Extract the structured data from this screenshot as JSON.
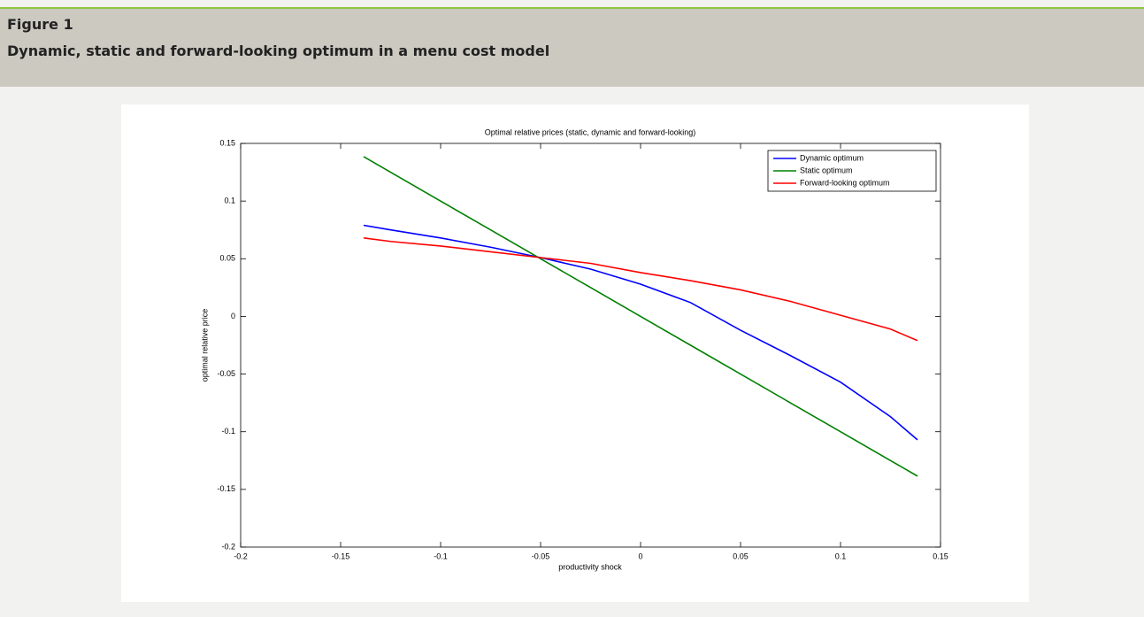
{
  "header": {
    "label": "Figure 1",
    "title": "Dynamic, static and forward-looking optimum in a menu cost model"
  },
  "chart_data": {
    "type": "line",
    "title": "Optimal relative prices (static, dynamic and forward-looking)",
    "x_label": "productivity shock",
    "y_label": "optimal relative price",
    "x": [
      -0.1385,
      -0.125,
      -0.1,
      -0.075,
      -0.05,
      -0.025,
      0,
      0.025,
      0.05,
      0.075,
      0.1,
      0.125,
      0.1385
    ],
    "series": [
      {
        "name": "Dynamic optimum",
        "color": "#0000ff",
        "values": [
          0.079,
          0.075,
          0.068,
          0.06,
          0.051,
          0.041,
          0.028,
          0.012,
          -0.012,
          -0.034,
          -0.057,
          -0.087,
          -0.107
        ]
      },
      {
        "name": "Static optimum",
        "color": "#008000",
        "values": [
          0.1385,
          0.125,
          0.1,
          0.075,
          0.05,
          0.025,
          0,
          -0.025,
          -0.05,
          -0.075,
          -0.1,
          -0.125,
          -0.1385
        ]
      },
      {
        "name": "Forward-looking optimum",
        "color": "#ff0000",
        "values": [
          0.068,
          0.065,
          0.061,
          0.056,
          0.051,
          0.046,
          0.038,
          0.031,
          0.023,
          0.013,
          0.001,
          -0.011,
          -0.021
        ]
      }
    ],
    "xlim": [
      -0.2,
      0.15
    ],
    "xticks": [
      -0.2,
      -0.15,
      -0.1,
      -0.05,
      0,
      0.05,
      0.1,
      0.15
    ],
    "ylim": [
      -0.2,
      0.15
    ],
    "yticks": [
      -0.2,
      -0.15,
      -0.1,
      -0.05,
      0,
      0.05,
      0.1,
      0.15
    ],
    "legend": "upper right"
  }
}
